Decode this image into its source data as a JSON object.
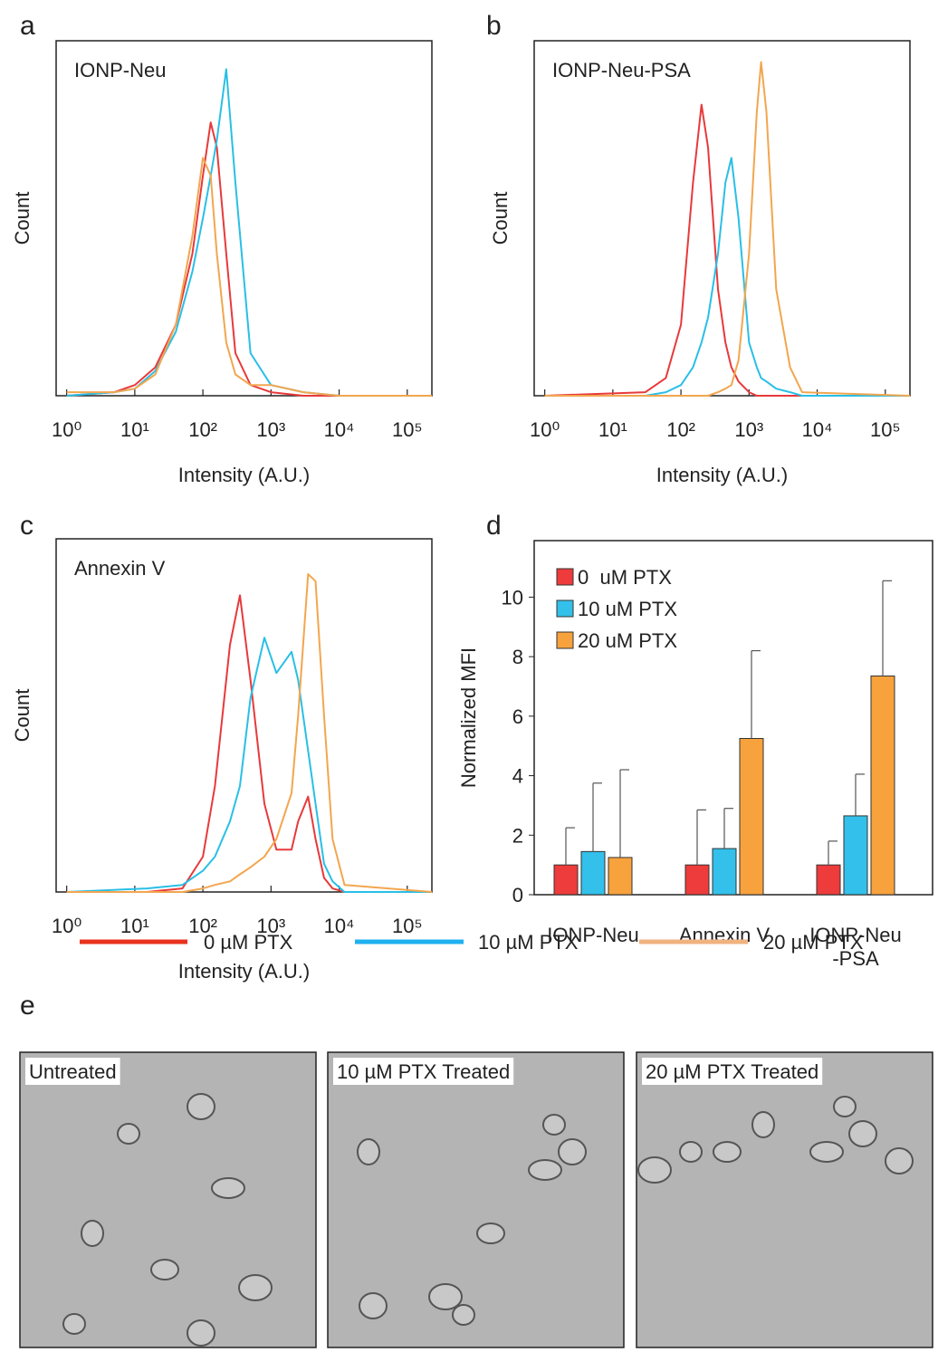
{
  "panel_labels": [
    "a",
    "b",
    "c",
    "d",
    "e"
  ],
  "chart_data": [
    {
      "type": "line",
      "annotation": "IONP-Neu",
      "xlabel": "Intensity (A.U.)",
      "ylabel": "Count",
      "log_x": true,
      "xlim": [
        0.7,
        230000
      ],
      "ylim": [
        0,
        100
      ],
      "xticks": [
        {
          "value": 1,
          "label": "10⁰"
        },
        {
          "value": 10,
          "label": "10¹"
        },
        {
          "value": 100,
          "label": "10²"
        },
        {
          "value": 1000,
          "label": "10³"
        },
        {
          "value": 10000,
          "label": "10⁴"
        },
        {
          "value": 100000,
          "label": "10⁵"
        }
      ],
      "x": [
        1,
        5,
        10,
        20,
        40,
        70,
        100,
        130,
        160,
        220,
        300,
        500,
        1000,
        3000,
        10000,
        230000
      ],
      "series": [
        {
          "color": "#e8393b",
          "values": [
            0,
            1,
            3,
            8,
            20,
            40,
            62,
            77,
            70,
            40,
            12,
            3,
            1,
            0,
            0,
            0
          ]
        },
        {
          "color": "#29bfe6",
          "values": [
            0,
            1,
            2,
            7,
            18,
            35,
            50,
            62,
            72,
            92,
            60,
            12,
            3,
            1,
            0,
            0
          ]
        },
        {
          "color": "#f2a64f",
          "values": [
            1,
            1,
            2,
            6,
            20,
            45,
            67,
            62,
            40,
            15,
            6,
            3,
            3,
            1,
            0,
            0
          ]
        }
      ]
    },
    {
      "type": "line",
      "annotation": "IONP-Neu-PSA",
      "xlabel": "Intensity (A.U.)",
      "ylabel": "Count",
      "log_x": true,
      "xlim": [
        0.7,
        230000
      ],
      "ylim": [
        0,
        100
      ],
      "xticks": [
        {
          "value": 1,
          "label": "10⁰"
        },
        {
          "value": 10,
          "label": "10¹"
        },
        {
          "value": 100,
          "label": "10²"
        },
        {
          "value": 1000,
          "label": "10³"
        },
        {
          "value": 10000,
          "label": "10⁴"
        },
        {
          "value": 100000,
          "label": "10⁵"
        }
      ],
      "x": [
        1,
        30,
        60,
        100,
        150,
        200,
        250,
        350,
        450,
        550,
        700,
        1000,
        1300,
        1500,
        1800,
        2500,
        4000,
        6000,
        230000
      ],
      "series": [
        {
          "color": "#e8393b",
          "values": [
            0,
            1,
            5,
            20,
            60,
            82,
            70,
            30,
            15,
            8,
            4,
            1,
            0,
            0,
            0,
            0,
            0,
            0,
            0
          ]
        },
        {
          "color": "#29bfe6",
          "values": [
            0,
            0,
            1,
            3,
            8,
            15,
            22,
            40,
            60,
            67,
            50,
            15,
            8,
            5,
            4,
            2,
            1,
            0,
            0
          ]
        },
        {
          "color": "#f2a64f",
          "values": [
            0,
            0,
            0,
            0,
            0,
            0,
            0,
            1,
            2,
            3,
            10,
            40,
            80,
            94,
            80,
            30,
            8,
            1,
            0
          ]
        }
      ]
    },
    {
      "type": "line",
      "annotation": "Annexin V",
      "xlabel": "Intensity (A.U.)",
      "ylabel": "Count",
      "log_x": true,
      "xlim": [
        0.7,
        230000
      ],
      "ylim": [
        0,
        100
      ],
      "xticks": [
        {
          "value": 1,
          "label": "10⁰"
        },
        {
          "value": 10,
          "label": "10¹"
        },
        {
          "value": 100,
          "label": "10²"
        },
        {
          "value": 1000,
          "label": "10³"
        },
        {
          "value": 10000,
          "label": "10⁴"
        },
        {
          "value": 100000,
          "label": "10⁵"
        }
      ],
      "x": [
        1,
        15,
        50,
        100,
        150,
        250,
        350,
        500,
        800,
        1200,
        2000,
        2500,
        3500,
        4500,
        6000,
        8000,
        12000,
        230000
      ],
      "series": [
        {
          "color": "#e8393b",
          "values": [
            0,
            0,
            1,
            10,
            30,
            70,
            84,
            60,
            25,
            12,
            12,
            20,
            27,
            15,
            4,
            1,
            0,
            0
          ]
        },
        {
          "color": "#29bfe6",
          "values": [
            0,
            1,
            2,
            6,
            10,
            20,
            30,
            55,
            72,
            62,
            68,
            60,
            40,
            25,
            8,
            3,
            0,
            0
          ]
        },
        {
          "color": "#f2a64f",
          "values": [
            0,
            0,
            0,
            1,
            2,
            3,
            5,
            7,
            10,
            15,
            28,
            50,
            90,
            88,
            50,
            15,
            2,
            0
          ]
        }
      ]
    },
    {
      "type": "bar",
      "ylabel": "Normalized MFI",
      "legend": "upper left",
      "categories": [
        "IONP-Neu",
        "Annexin V",
        "IONP-Neu\n-PSA"
      ],
      "ylim": [
        0,
        11.9
      ],
      "yticks": [
        0,
        2,
        4,
        6,
        8,
        10
      ],
      "series": [
        {
          "name": "0  uM PTX",
          "color": "#ee3b3b",
          "values": [
            1,
            1,
            1
          ],
          "errors": [
            1.25,
            1.85,
            0.8
          ]
        },
        {
          "name": "10 uM PTX",
          "color": "#33c0ea",
          "values": [
            1.45,
            1.55,
            2.65
          ],
          "errors": [
            2.3,
            1.35,
            1.4
          ]
        },
        {
          "name": "20 uM PTX",
          "color": "#f7a23c",
          "values": [
            1.25,
            5.25,
            7.35
          ],
          "errors": [
            2.95,
            2.95,
            3.2
          ]
        }
      ]
    }
  ],
  "legend": [
    {
      "label": "0 µM PTX",
      "color": "#e8321e"
    },
    {
      "label": "10 µM PTX",
      "color": "#1fb0f0"
    },
    {
      "label": "20 µM PTX",
      "color": "#f0b27f"
    }
  ],
  "images": [
    {
      "label": "Untreated"
    },
    {
      "label": "10 µM PTX Treated"
    },
    {
      "label": "20 µM PTX Treated"
    }
  ]
}
